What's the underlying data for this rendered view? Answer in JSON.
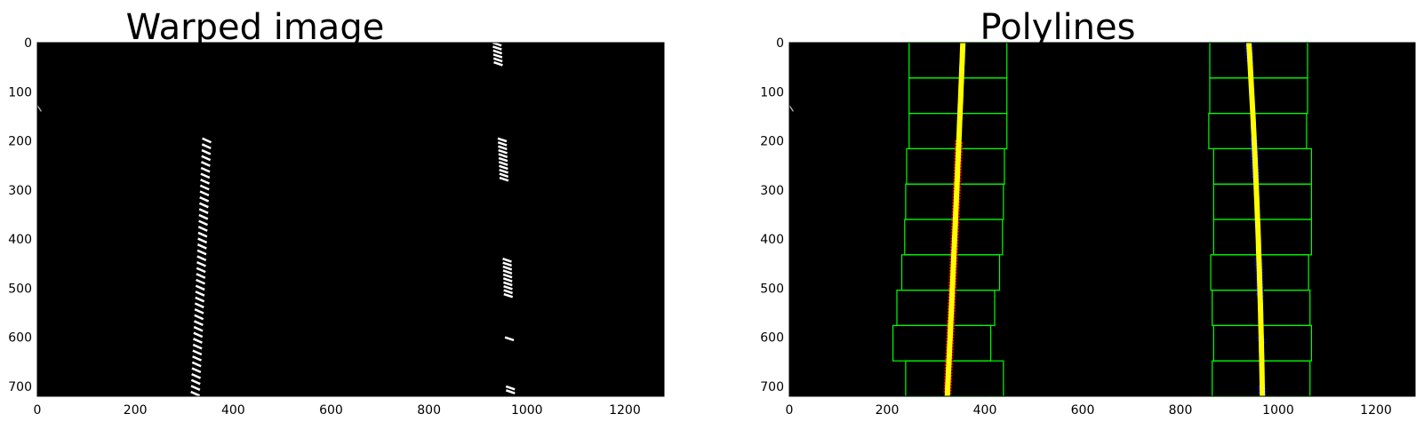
{
  "figure": {
    "panels": [
      {
        "title": "Warped image",
        "x_ticks": [
          "0",
          "200",
          "400",
          "600",
          "800",
          "1000",
          "1200"
        ],
        "y_ticks": [
          "0",
          "100",
          "200",
          "300",
          "400",
          "500",
          "600",
          "700"
        ]
      },
      {
        "title": "Polylines",
        "x_ticks": [
          "0",
          "200",
          "400",
          "600",
          "800",
          "1000",
          "1200"
        ],
        "y_ticks": [
          "0",
          "100",
          "200",
          "300",
          "400",
          "500",
          "600",
          "700"
        ]
      }
    ]
  },
  "colors": {
    "background": "#000000",
    "lane_pixels": "#ffffff",
    "window_box": "#00ff00",
    "left_lane_points": "#ff0000",
    "right_lane_points": "#0000ff",
    "fit_line": "#ffff00"
  }
}
